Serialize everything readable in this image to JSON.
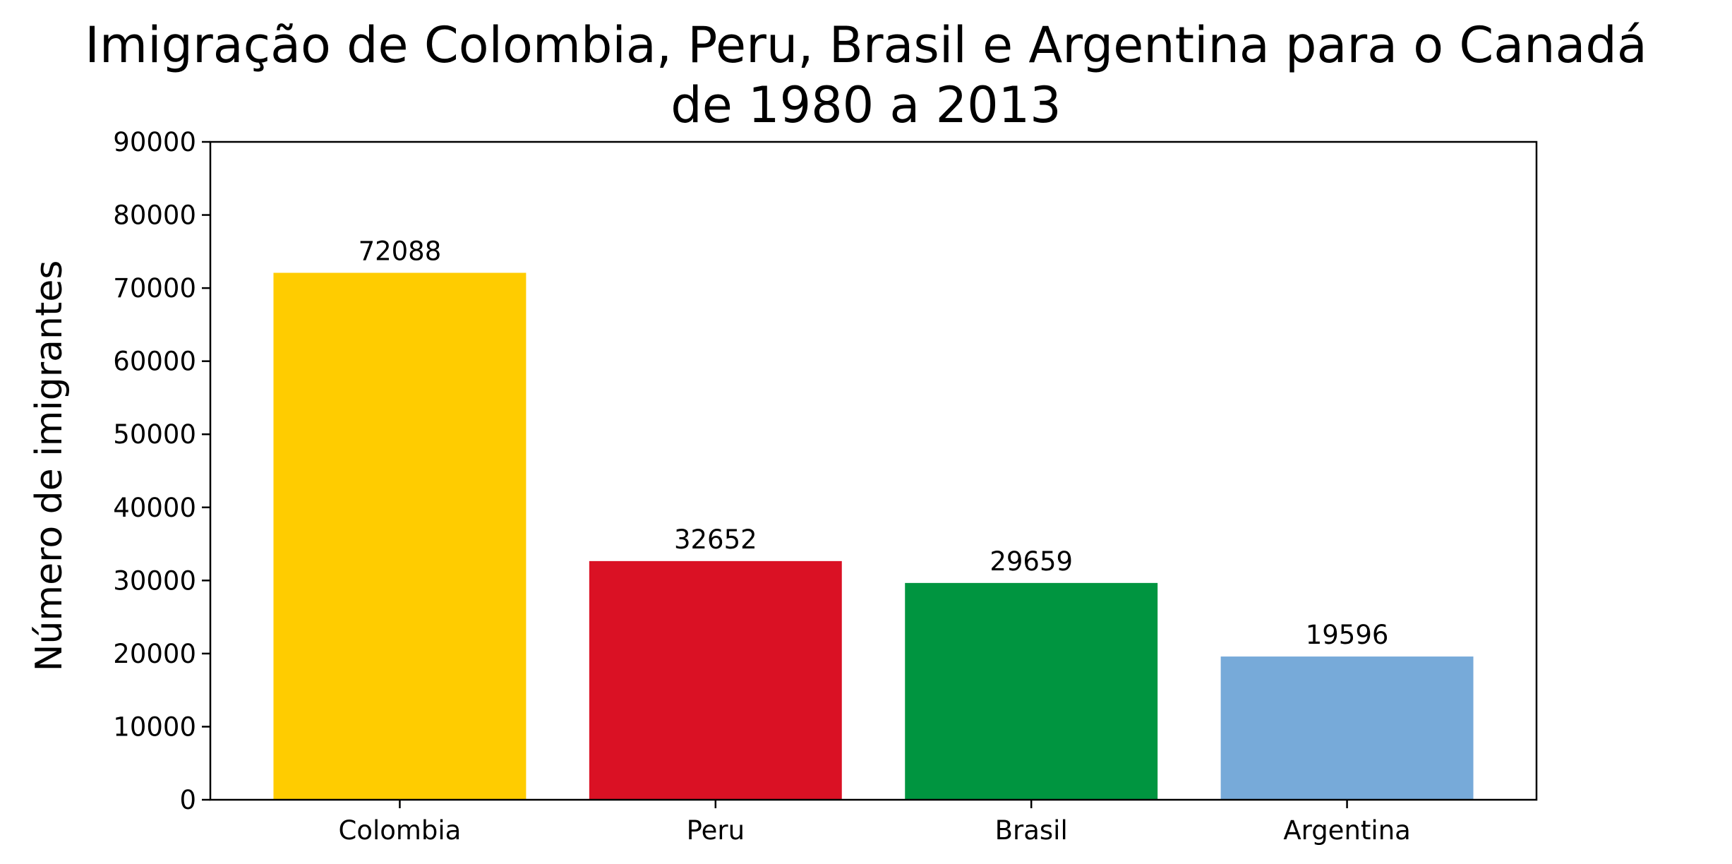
{
  "chart_data": {
    "type": "bar",
    "title_lines": [
      "Imigração de Colombia, Peru, Brasil e Argentina para o Canadá",
      "de 1980 a 2013"
    ],
    "xlabel": "",
    "ylabel": "Número de imigrantes",
    "categories": [
      "Colombia",
      "Peru",
      "Brasil",
      "Argentina"
    ],
    "values": [
      72088,
      32652,
      29659,
      19596
    ],
    "colors": [
      "#FFCC00",
      "#DA1124",
      "#009540",
      "#77AAD9"
    ],
    "ylim": [
      0,
      90000
    ],
    "yticks": [
      "0",
      "10000",
      "20000",
      "30000",
      "40000",
      "50000",
      "60000",
      "70000",
      "80000",
      "90000"
    ],
    "data_labels": [
      "72088",
      "32652",
      "29659",
      "19596"
    ],
    "grid": false,
    "legend": false
  }
}
